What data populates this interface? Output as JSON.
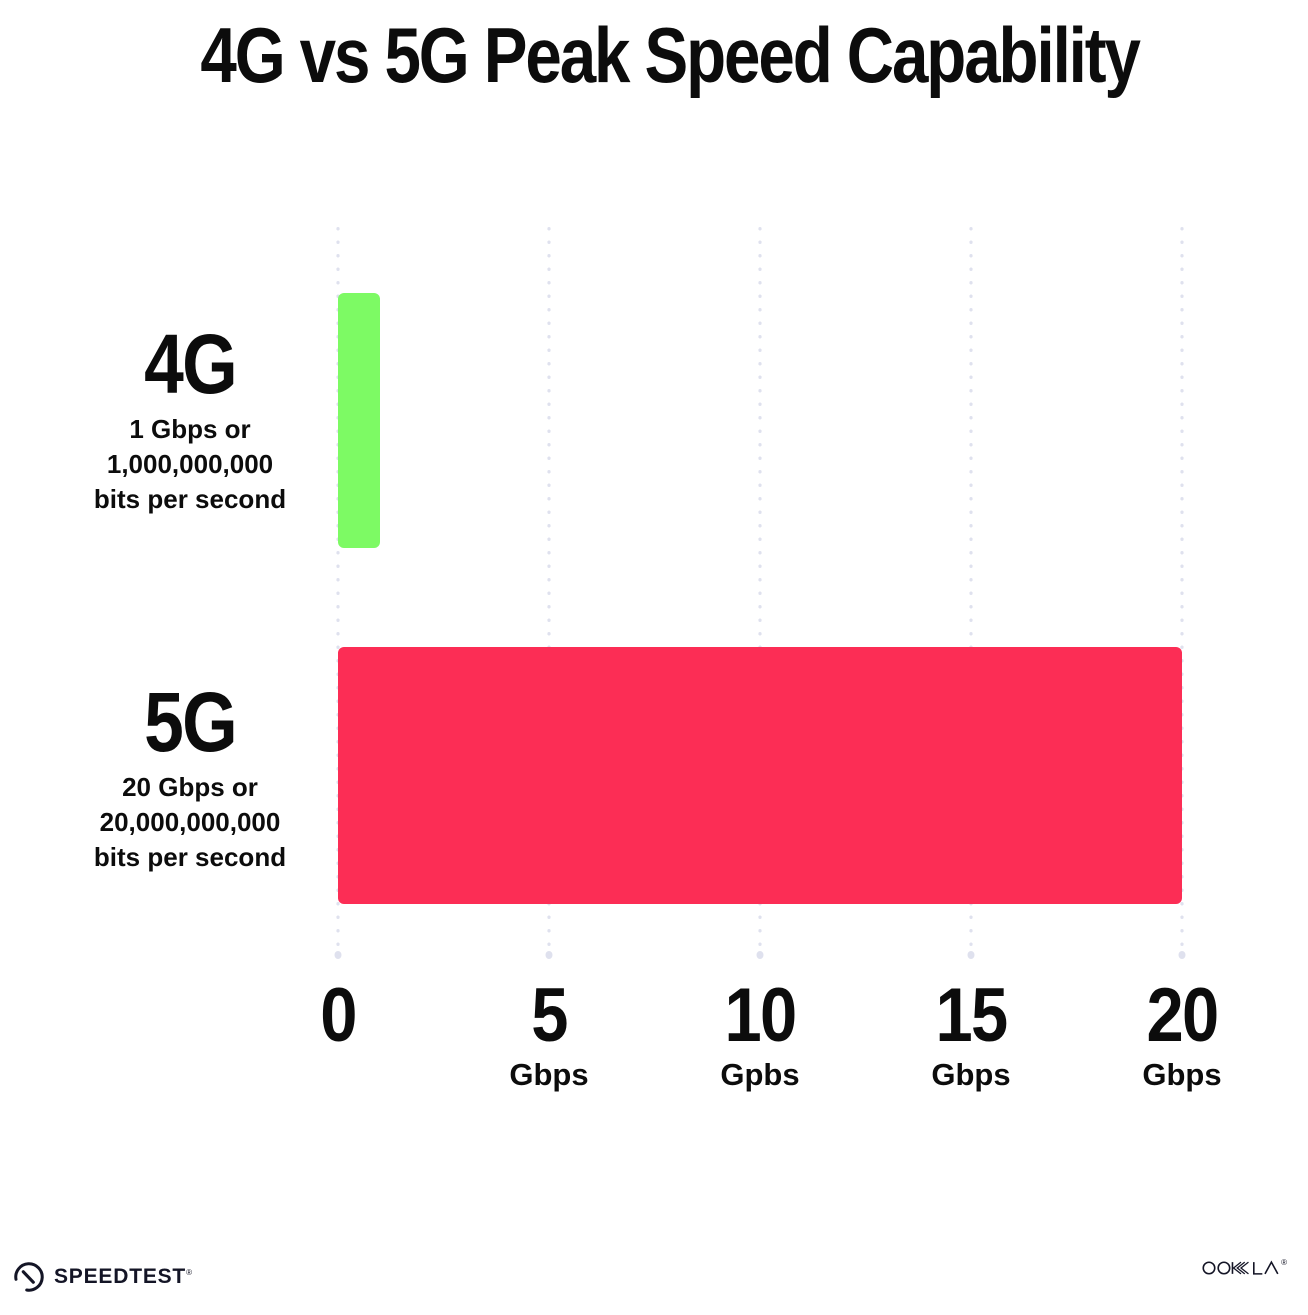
{
  "title": "4G vs 5G Peak Speed Capability",
  "rows": [
    {
      "label": "4G",
      "sub_line1": "1 Gbps or",
      "sub_line2": "1,000,000,000",
      "sub_line3": "bits per second"
    },
    {
      "label": "5G",
      "sub_line1": "20 Gbps or",
      "sub_line2": "20,000,000,000",
      "sub_line3": "bits per second"
    }
  ],
  "x_axis": {
    "ticks": [
      {
        "number": "0",
        "unit": ""
      },
      {
        "number": "5",
        "unit": "Gbps"
      },
      {
        "number": "10",
        "unit": "Gpbs"
      },
      {
        "number": "15",
        "unit": "Gbps"
      },
      {
        "number": "20",
        "unit": "Gbps"
      }
    ]
  },
  "footer": {
    "speedtest_label": "SPEEDTEST",
    "speedtest_reg": "®",
    "ookla_label": "OOKLA",
    "ookla_reg": "®"
  },
  "colors": {
    "green": "#7DFA64",
    "pink": "#FC2D55",
    "grid_dot": "#DFE1EE",
    "text": "#0C0C0C",
    "logo": "#141526"
  },
  "chart_data": {
    "type": "bar",
    "orientation": "horizontal",
    "title": "4G vs 5G Peak Speed Capability",
    "categories": [
      "4G",
      "5G"
    ],
    "values": [
      1,
      20
    ],
    "bar_colors": [
      "#7DFA64",
      "#FC2D55"
    ],
    "xlabel": "Gbps",
    "ylabel": "",
    "xlim": [
      0,
      20
    ],
    "x_ticks": [
      0,
      5,
      10,
      15,
      20
    ],
    "grid": "vertical-dotted",
    "legend": "none",
    "annotations": [
      "4G: 1 Gbps or 1,000,000,000 bits per second",
      "5G: 20 Gbps or 20,000,000,000 bits per second"
    ]
  }
}
